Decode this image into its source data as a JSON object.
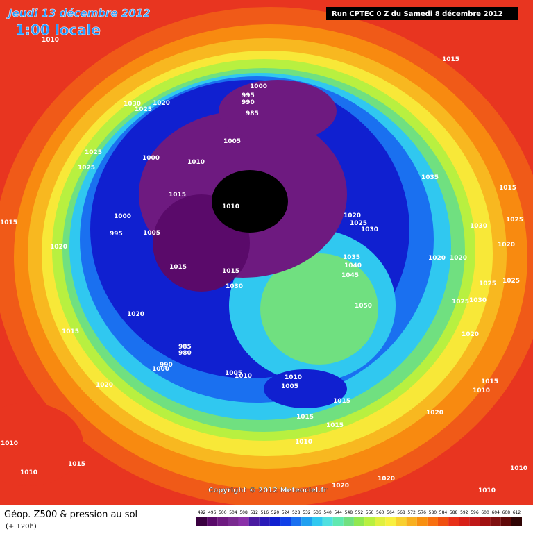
{
  "header": {
    "date": "Jeudi 13 décembre 2012",
    "time": "1:00 locale",
    "run": "Run CPTEC 0 Z du Samedi 8 décembre 2012"
  },
  "copyright": "Copyright © 2012 Meteociel.fr",
  "legend": {
    "title": "Géop. Z500 & pression au sol",
    "subtitle": "(+ 120h)",
    "scale_values": [
      492,
      496,
      500,
      504,
      508,
      512,
      516,
      520,
      524,
      528,
      532,
      536,
      540,
      544,
      548,
      552,
      556,
      560,
      564,
      568,
      572,
      576,
      580,
      584,
      588,
      592,
      596,
      600,
      604,
      608,
      612
    ],
    "scale_colors": [
      "#3a0040",
      "#5a0a6a",
      "#6e1a80",
      "#7a2a90",
      "#8a30a8",
      "#4a1aa0",
      "#2a1ab8",
      "#1020d0",
      "#1040e8",
      "#1a70f0",
      "#20a0f0",
      "#30c8f0",
      "#50e0e0",
      "#60e8b0",
      "#70e080",
      "#90e850",
      "#b8f040",
      "#e0f040",
      "#f8f040",
      "#f8d030",
      "#f8b020",
      "#f89010",
      "#f87010",
      "#f05010",
      "#e83018",
      "#d82018",
      "#c01818",
      "#a01010",
      "#801010",
      "#600808",
      "#300404"
    ]
  },
  "isobar_labels": [
    "1010",
    "1000",
    "995",
    "990",
    "985",
    "1030",
    "1025",
    "1020",
    "1025",
    "1000",
    "1005",
    "1010",
    "1025",
    "1015",
    "1010",
    "1000",
    "995",
    "1005",
    "1015",
    "1020",
    "1015",
    "1015",
    "1030",
    "1020",
    "1025",
    "1030",
    "1035",
    "1040",
    "1045",
    "1050",
    "1035",
    "1015",
    "1015",
    "1025",
    "1030",
    "1020",
    "1020",
    "1020",
    "1025",
    "1025",
    "1025",
    "1030",
    "1020",
    "1015",
    "985",
    "980",
    "990",
    "1000",
    "1005",
    "1010",
    "1010",
    "1005",
    "1015",
    "1015",
    "1015",
    "1010",
    "1020",
    "1015",
    "1010",
    "1020",
    "1020",
    "1010",
    "1010",
    "1015",
    "1020",
    "1020",
    "1010",
    "1010"
  ]
}
